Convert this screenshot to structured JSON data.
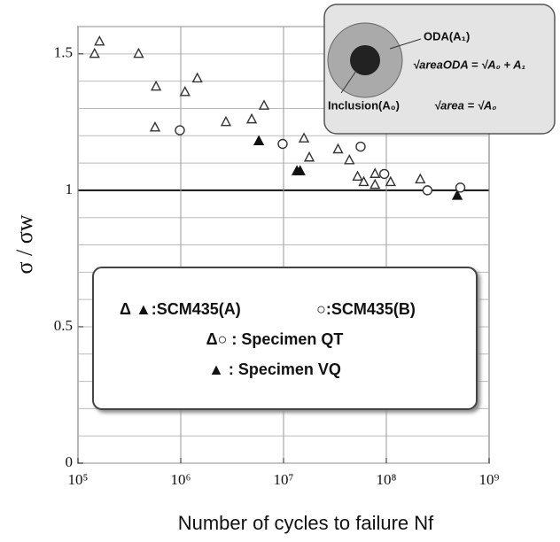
{
  "chart_data": {
    "type": "scatter",
    "x_label": "Number of cycles to failure Nf",
    "y_label": "σ / σw",
    "xlim": [
      100000,
      1000000000
    ],
    "xlog": true,
    "xticks": [
      {
        "value": 100000,
        "label": "10⁵"
      },
      {
        "value": 1000000,
        "label": "10⁶"
      },
      {
        "value": 10000000,
        "label": "10⁷"
      },
      {
        "value": 100000000,
        "label": "10⁸"
      },
      {
        "value": 1000000000,
        "label": "10⁹"
      }
    ],
    "ylim": [
      0,
      1.6
    ],
    "yticks": [
      0,
      0.5,
      1,
      1.5
    ],
    "minor_yticks": [
      0.1,
      0.2,
      0.3,
      0.4,
      0.6,
      0.7,
      0.8,
      0.9,
      1.1,
      1.2,
      1.3,
      1.4,
      1.6
    ],
    "reference_y": 1,
    "grid": true,
    "series": [
      {
        "marker": "open-triangle",
        "color": "#333333",
        "x": [
          145000,
          162000,
          389000,
          575000,
          562000,
          1100000,
          1450000,
          2750000,
          4900000,
          6460000,
          15800000,
          17800000,
          33900000,
          43700000,
          52500000,
          60300000,
          77600000,
          77600000,
          110000000,
          214000000
        ],
        "values": [
          1.5,
          1.545,
          1.5,
          1.38,
          1.23,
          1.36,
          1.41,
          1.25,
          1.26,
          1.31,
          1.19,
          1.12,
          1.15,
          1.11,
          1.05,
          1.03,
          1.06,
          1.02,
          1.03,
          1.04
        ]
      },
      {
        "marker": "filled-triangle",
        "color": "#111111",
        "x": [
          5750000,
          13500000,
          14500000,
          490000000
        ],
        "values": [
          1.18,
          1.07,
          1.07,
          0.98
        ]
      },
      {
        "marker": "open-circle",
        "color": "#333333",
        "x": [
          980000,
          9800000,
          56200000,
          95500000,
          251000000,
          525000000
        ],
        "values": [
          1.22,
          1.17,
          1.16,
          1.06,
          1.0,
          1.01
        ]
      }
    ],
    "legend": [
      "Δ ▲:SCM435(A)",
      "○:SCM435(B)",
      "Δ○ : Specimen QT",
      "▲ : Specimen VQ"
    ],
    "inset": {
      "outer_label": "ODA(A₁)",
      "outer_formula": "√areaODA = √A₀ + A₁",
      "inner_label": "Inclusion(A₀)",
      "inner_formula": "√area = √A₀"
    }
  }
}
